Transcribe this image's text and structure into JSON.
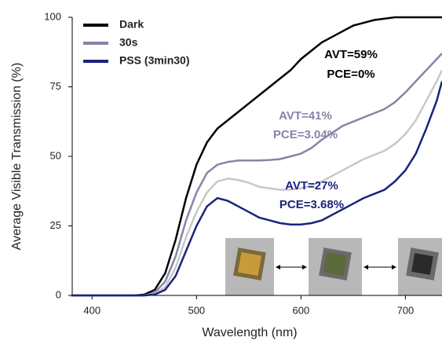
{
  "chart_data": {
    "type": "line",
    "xlabel": "Wavelength (nm)",
    "ylabel": "Average Visible Transmission (%)",
    "x": [
      380,
      400,
      420,
      440,
      450,
      460,
      470,
      480,
      490,
      500,
      510,
      520,
      530,
      540,
      550,
      560,
      570,
      580,
      590,
      600,
      610,
      620,
      630,
      640,
      650,
      660,
      670,
      680,
      690,
      700,
      710,
      720,
      730,
      735
    ],
    "series": [
      {
        "name": "Dark",
        "color": "#000000",
        "values": [
          0,
          0,
          0,
          0,
          0.3,
          2,
          8,
          20,
          35,
          47,
          55,
          60,
          63,
          66,
          69,
          72,
          75,
          78,
          81,
          85,
          88,
          91,
          93,
          95,
          97,
          98,
          99,
          99.5,
          100,
          100,
          100,
          100,
          100,
          100
        ]
      },
      {
        "name": "30s",
        "color": "#8585a8",
        "values": [
          0,
          0,
          0,
          0,
          0,
          1,
          5,
          14,
          27,
          37,
          44,
          47,
          48,
          48.5,
          48.5,
          48.5,
          48.7,
          49,
          50,
          51,
          53,
          56,
          58.5,
          61,
          62.5,
          64,
          65.5,
          67,
          69.5,
          73,
          77,
          81,
          85,
          87
        ]
      },
      {
        "color": "#c8c8c8",
        "values": [
          0,
          0,
          0,
          0,
          0,
          0.5,
          3,
          10,
          21,
          30,
          37,
          41,
          42,
          41.5,
          40.5,
          39,
          38.5,
          38,
          38,
          38.5,
          39.5,
          41,
          43,
          45,
          47,
          49,
          50.5,
          52,
          54.5,
          58,
          63,
          70,
          77,
          81
        ]
      },
      {
        "name": "PSS (3min30)",
        "color": "#1a237e",
        "values": [
          0,
          0,
          0,
          0,
          0,
          0.3,
          2,
          7,
          16,
          25,
          32,
          35,
          34,
          32,
          30,
          28,
          27,
          26,
          25.5,
          25.5,
          26,
          27,
          29,
          31,
          33,
          35,
          36.5,
          38,
          41,
          45,
          51,
          60,
          70,
          77
        ]
      }
    ],
    "xlim": [
      381,
      735
    ],
    "xticks": [
      400,
      500,
      600,
      700
    ],
    "ylim": [
      0,
      100
    ],
    "yticks": [
      0,
      25,
      50,
      75,
      100
    ],
    "annotations": [
      {
        "text": "AVT=59%",
        "color": "#000000"
      },
      {
        "text": "PCE=0%",
        "color": "#000000"
      },
      {
        "text": "AVT=41%",
        "color": "#8585a8"
      },
      {
        "text": "PCE=3.04%",
        "color": "#8585a8"
      },
      {
        "text": "AVT=27%",
        "color": "#1a237e"
      },
      {
        "text": "PCE=3.68%",
        "color": "#1a237e"
      }
    ]
  }
}
